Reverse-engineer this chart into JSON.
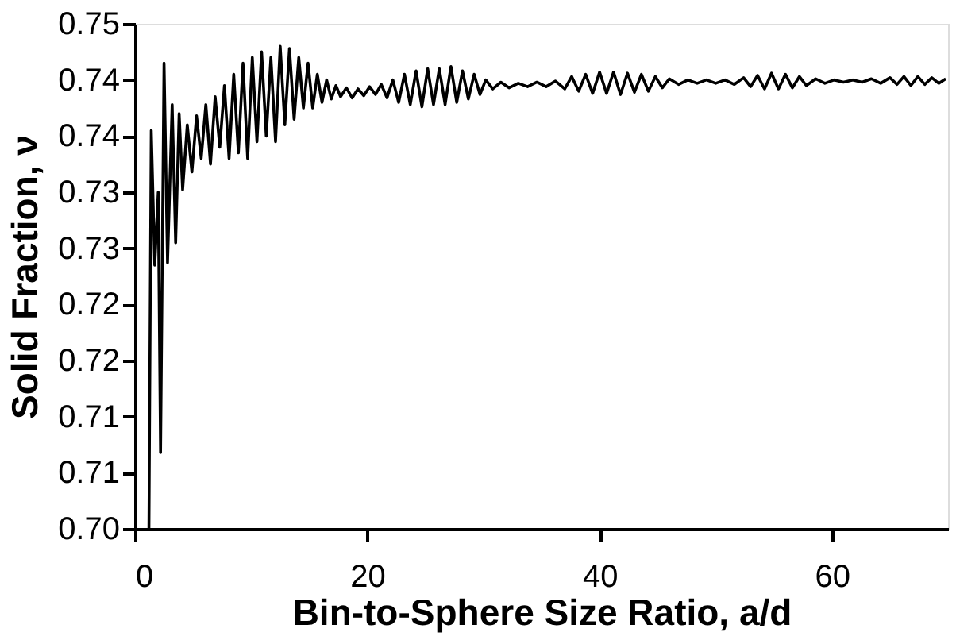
{
  "chart_data": {
    "type": "line",
    "xlabel": "Bin-to-Sphere Size Ratio, a/d",
    "ylabel": "Solid Fraction, ν",
    "xlim": [
      0,
      70
    ],
    "xticks": [
      0,
      20,
      40,
      60
    ],
    "ylim": [
      0.7,
      0.745
    ],
    "yticks": [
      {
        "value": 0.7,
        "label": "0.70"
      },
      {
        "value": 0.705,
        "label": "0.71"
      },
      {
        "value": 0.71,
        "label": "0.71"
      },
      {
        "value": 0.715,
        "label": "0.72"
      },
      {
        "value": 0.72,
        "label": "0.72"
      },
      {
        "value": 0.725,
        "label": "0.73"
      },
      {
        "value": 0.73,
        "label": "0.73"
      },
      {
        "value": 0.735,
        "label": "0.74"
      },
      {
        "value": 0.74,
        "label": "0.74"
      },
      {
        "value": 0.745,
        "label": "0.75"
      }
    ],
    "grid": false,
    "legend": false,
    "marker": "none",
    "line_style": "solid",
    "series": [
      {
        "color": "#000000",
        "x": [
          1.2,
          1.4,
          1.7,
          2.0,
          2.2,
          2.5,
          2.8,
          3.2,
          3.5,
          3.8,
          4.1,
          4.5,
          4.9,
          5.3,
          5.7,
          6.1,
          6.5,
          6.9,
          7.3,
          7.7,
          8.1,
          8.5,
          8.9,
          9.3,
          9.7,
          10.1,
          10.5,
          10.9,
          11.3,
          11.7,
          12.1,
          12.5,
          12.9,
          13.3,
          13.7,
          14.1,
          14.5,
          14.9,
          15.3,
          15.7,
          16.1,
          16.5,
          16.9,
          17.3,
          17.7,
          18.2,
          18.7,
          19.2,
          19.7,
          20.2,
          20.7,
          21.2,
          21.7,
          22.2,
          22.7,
          23.2,
          23.7,
          24.2,
          24.7,
          25.2,
          25.7,
          26.2,
          26.7,
          27.2,
          27.7,
          28.2,
          28.7,
          29.2,
          29.7,
          30.2,
          30.8,
          31.5,
          32.2,
          33.0,
          33.8,
          34.6,
          35.4,
          36.2,
          37.0,
          37.6,
          38.2,
          38.8,
          39.4,
          40.0,
          40.6,
          41.2,
          41.8,
          42.4,
          43.0,
          43.6,
          44.2,
          44.8,
          45.4,
          46.0,
          46.8,
          47.6,
          48.4,
          49.2,
          50.0,
          50.8,
          51.6,
          52.4,
          53.0,
          53.6,
          54.2,
          54.8,
          55.4,
          56.0,
          56.6,
          57.2,
          57.8,
          58.6,
          59.4,
          60.2,
          61.0,
          61.8,
          62.6,
          63.4,
          64.2,
          65.0,
          65.6,
          66.2,
          66.8,
          67.4,
          68.0,
          68.6,
          69.2,
          69.8
        ],
        "values": [
          0.7,
          0.7355,
          0.7235,
          0.73,
          0.7068,
          0.7415,
          0.7237,
          0.7378,
          0.7255,
          0.737,
          0.7302,
          0.736,
          0.7318,
          0.7368,
          0.733,
          0.7378,
          0.7325,
          0.7385,
          0.734,
          0.7395,
          0.733,
          0.7405,
          0.7335,
          0.7415,
          0.733,
          0.742,
          0.7345,
          0.7425,
          0.735,
          0.742,
          0.7345,
          0.743,
          0.736,
          0.7428,
          0.7365,
          0.742,
          0.7375,
          0.7415,
          0.7375,
          0.7405,
          0.738,
          0.74,
          0.7383,
          0.7395,
          0.7385,
          0.7393,
          0.7384,
          0.7392,
          0.7386,
          0.7394,
          0.7387,
          0.7396,
          0.7384,
          0.74,
          0.738,
          0.7405,
          0.7378,
          0.7408,
          0.7376,
          0.741,
          0.7378,
          0.741,
          0.7378,
          0.7412,
          0.738,
          0.7408,
          0.7383,
          0.7405,
          0.7387,
          0.74,
          0.7392,
          0.7398,
          0.7393,
          0.7397,
          0.7394,
          0.7398,
          0.7394,
          0.7399,
          0.7392,
          0.7403,
          0.739,
          0.7405,
          0.7388,
          0.7407,
          0.7388,
          0.7407,
          0.7387,
          0.7406,
          0.7389,
          0.7405,
          0.739,
          0.7403,
          0.7393,
          0.7401,
          0.7396,
          0.74,
          0.7397,
          0.74,
          0.7397,
          0.74,
          0.7396,
          0.7402,
          0.7394,
          0.7404,
          0.7392,
          0.7406,
          0.7392,
          0.7405,
          0.7393,
          0.7403,
          0.7395,
          0.7401,
          0.7397,
          0.74,
          0.7398,
          0.74,
          0.7398,
          0.7401,
          0.7397,
          0.7402,
          0.7396,
          0.7403,
          0.7395,
          0.7403,
          0.7396,
          0.7402,
          0.7397,
          0.7401
        ]
      }
    ]
  }
}
